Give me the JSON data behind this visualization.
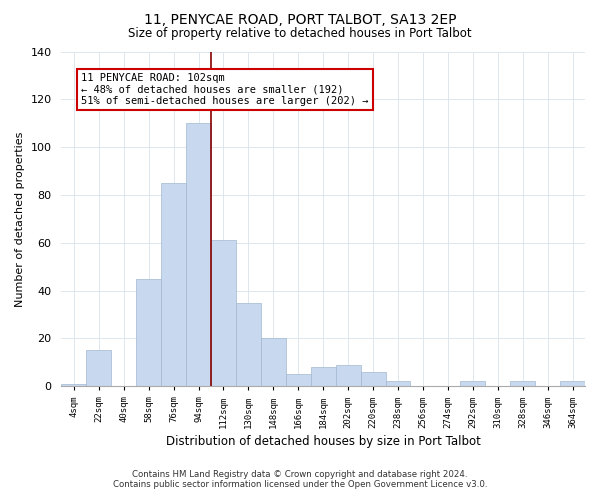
{
  "title": "11, PENYCAE ROAD, PORT TALBOT, SA13 2EP",
  "subtitle": "Size of property relative to detached houses in Port Talbot",
  "xlabel": "Distribution of detached houses by size in Port Talbot",
  "ylabel": "Number of detached properties",
  "bar_color": "#c8d8ee",
  "bar_edge_color": "#a0b8d0",
  "tick_labels": [
    "4sqm",
    "22sqm",
    "40sqm",
    "58sqm",
    "76sqm",
    "94sqm",
    "112sqm",
    "130sqm",
    "148sqm",
    "166sqm",
    "184sqm",
    "202sqm",
    "220sqm",
    "238sqm",
    "256sqm",
    "274sqm",
    "292sqm",
    "310sqm",
    "328sqm",
    "346sqm",
    "364sqm"
  ],
  "bar_values": [
    1,
    15,
    0,
    45,
    85,
    110,
    61,
    35,
    20,
    5,
    8,
    9,
    6,
    2,
    0,
    0,
    2,
    0,
    2,
    0,
    2
  ],
  "ylim": [
    0,
    140
  ],
  "yticks": [
    0,
    20,
    40,
    60,
    80,
    100,
    120,
    140
  ],
  "property_line_x": 5.5,
  "property_line_color": "#880000",
  "annotation_title": "11 PENYCAE ROAD: 102sqm",
  "annotation_line1": "← 48% of detached houses are smaller (192)",
  "annotation_line2": "51% of semi-detached houses are larger (202) →",
  "annotation_box_color": "#ffffff",
  "annotation_box_edge": "#cc0000",
  "footnote1": "Contains HM Land Registry data © Crown copyright and database right 2024.",
  "footnote2": "Contains public sector information licensed under the Open Government Licence v3.0.",
  "background_color": "#ffffff",
  "grid_color": "#dde6ee"
}
